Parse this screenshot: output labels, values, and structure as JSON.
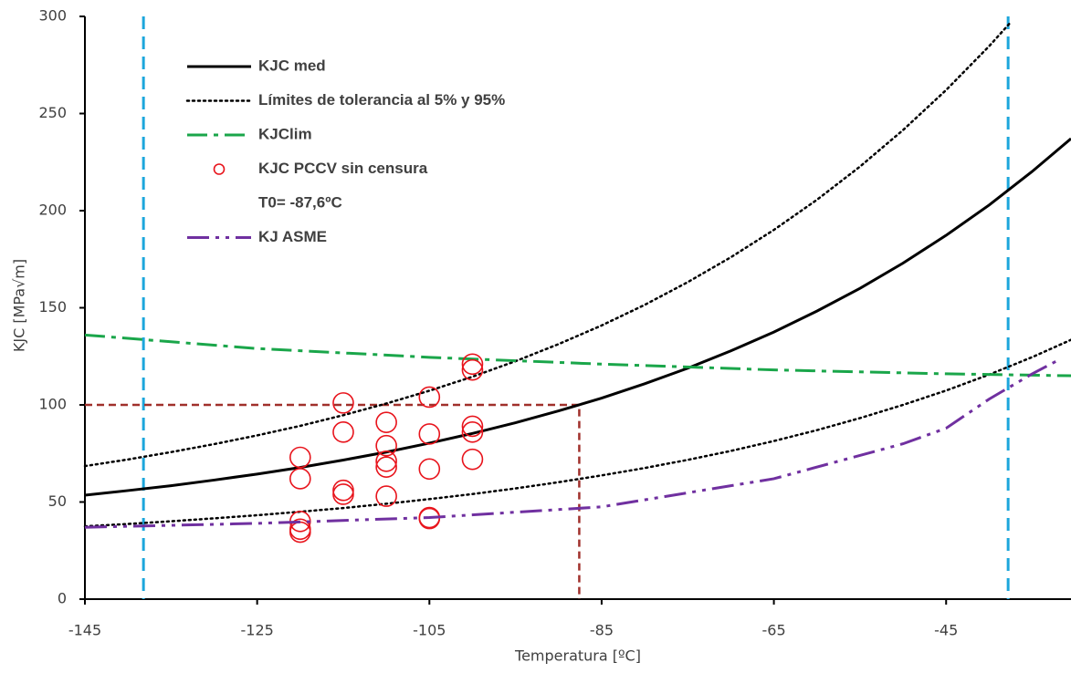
{
  "chart_data": {
    "type": "line",
    "x_label": "Temperatura [ºC]",
    "y_label": "KJC [MPa√m]",
    "xlim": [
      -145,
      -30.5
    ],
    "ylim": [
      0,
      300
    ],
    "xticks": [
      -145,
      -125,
      -105,
      -85,
      -65,
      -45
    ],
    "yticks": [
      0,
      50,
      100,
      150,
      200,
      250,
      300
    ],
    "grid": false,
    "legend": "upper left",
    "annotation": "T0= -87,6ºC",
    "series": [
      {
        "name": "KJC med",
        "type": "line",
        "color": "#000000",
        "style": "solid",
        "x": [
          -145,
          -140,
          -135,
          -130,
          -125,
          -120,
          -115,
          -110,
          -105,
          -100,
          -95,
          -90,
          -85,
          -80,
          -75,
          -70,
          -65,
          -60,
          -55,
          -50,
          -45,
          -40,
          -35,
          -30.5
        ],
        "values": [
          53.5,
          55.9,
          58.4,
          61.3,
          64.4,
          67.8,
          71.6,
          75.7,
          80.3,
          85.3,
          90.8,
          96.9,
          103.5,
          110.9,
          118.9,
          127.8,
          137.5,
          148.3,
          160.0,
          173.0,
          187.3,
          202.9,
          220.2,
          237.1
        ]
      },
      {
        "name": "Límites de tolerancia al 5% y 95%",
        "type": "line",
        "color": "#000000",
        "style": "dotted",
        "x": [
          -145,
          -140,
          -135,
          -130,
          -125,
          -120,
          -115,
          -110,
          -105,
          -100,
          -95,
          -90,
          -85,
          -80,
          -75,
          -70,
          -65,
          -60,
          -55,
          -50,
          -45,
          -40,
          -37.5
        ],
        "values": [
          68.5,
          71.9,
          75.7,
          79.8,
          84.3,
          89.2,
          94.7,
          100.7,
          107.3,
          114.5,
          122.5,
          131.3,
          140.9,
          151.5,
          163.2,
          176.0,
          190.1,
          205.6,
          222.7,
          241.5,
          262.1,
          284.7,
          297
        ],
        "lower": {
          "x": [
            -145,
            -140,
            -135,
            -130,
            -125,
            -120,
            -115,
            -110,
            -105,
            -100,
            -95,
            -90,
            -85,
            -80,
            -75,
            -70,
            -65,
            -60,
            -55,
            -50,
            -45,
            -40,
            -35,
            -30.5
          ],
          "values": [
            37.5,
            38.7,
            40.1,
            41.6,
            43.2,
            45.0,
            46.9,
            49.1,
            51.5,
            54.1,
            57.0,
            60.2,
            63.7,
            67.5,
            71.7,
            76.3,
            81.4,
            87.0,
            93.2,
            100.0,
            107.4,
            115.6,
            124.6,
            133.5
          ]
        }
      },
      {
        "name": "KJClim",
        "type": "line",
        "color": "#1aa64a",
        "style": "dashdot",
        "x": [
          -145,
          -125,
          -105,
          -85,
          -65,
          -45,
          -30.5
        ],
        "values": [
          136,
          129,
          124.5,
          121,
          118,
          116,
          115
        ]
      },
      {
        "name": "KJC PCCV sin censura",
        "type": "scatter",
        "color": "#e8141c",
        "x": [
          -120,
          -120,
          -120,
          -120,
          -120,
          -115,
          -115,
          -115,
          -115,
          -110,
          -110,
          -110,
          -110,
          -110,
          -105,
          -105,
          -105,
          -105,
          -105,
          -100,
          -100,
          -100,
          -100,
          -100
        ],
        "values": [
          73,
          62,
          40,
          36,
          34.5,
          101,
          86,
          56,
          54,
          91,
          79,
          71,
          68,
          53,
          104,
          85,
          67,
          42,
          41.5,
          121,
          118,
          89,
          86,
          72
        ]
      },
      {
        "name": "KJ ASME",
        "type": "line",
        "color": "#7030a0",
        "style": "dashdotdot",
        "x": [
          -145,
          -125,
          -105,
          -85,
          -65,
          -50,
          -45,
          -40,
          -35,
          -32
        ],
        "values": [
          37,
          39,
          42,
          47.5,
          62,
          80,
          88,
          103,
          116,
          123
        ]
      }
    ],
    "vlines": [
      {
        "value": -138.2,
        "color": "#1ca6dc"
      },
      {
        "value": -37.8,
        "color": "#1ca6dc"
      }
    ],
    "guide": {
      "x": -87.6,
      "y": 100,
      "color": "#a0302b"
    }
  }
}
